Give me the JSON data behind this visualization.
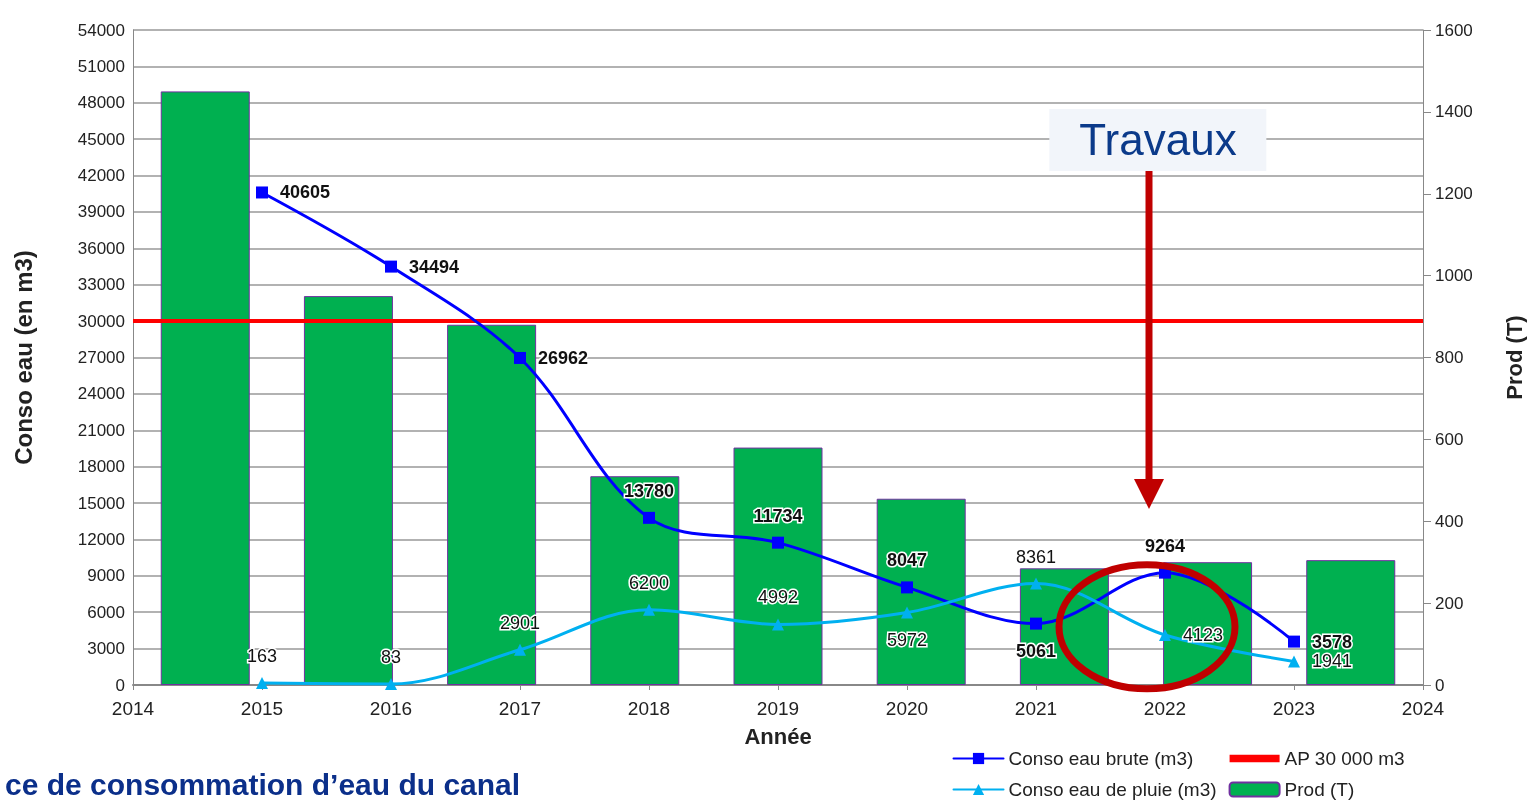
{
  "chart_data": {
    "type": "line",
    "title": "ce de consommation d’eau du canal",
    "xlabel": "Année",
    "ylabel": "Conso eau (en m3)",
    "y2label": "Prod (T)",
    "x": [
      2015,
      2016,
      2017,
      2018,
      2019,
      2020,
      2021,
      2022,
      2023
    ],
    "series": [
      {
        "name": "Conso eau brute (m3)",
        "color": "#0000ff",
        "marker": "square",
        "data_labels": true,
        "values": [
          40605,
          34494,
          26962,
          13780,
          11734,
          8047,
          5061,
          9264,
          3578
        ]
      },
      {
        "name": "Conso eau de pluie (m3)",
        "color": "#00b0f0",
        "marker": "triangle",
        "data_labels": true,
        "values": [
          163,
          83,
          2901,
          6200,
          4992,
          5972,
          8361,
          4123,
          1941
        ]
      },
      {
        "name": "Prod (T)",
        "type": "bar",
        "axis": "y2",
        "color": "#00b050",
        "x": [
          2014.56,
          2015.67,
          2016.78,
          2017.89,
          2019.0,
          2020.11,
          2021.22,
          2022.33,
          2023.44
        ],
        "values": [
          1450,
          950,
          880,
          510,
          580,
          455,
          285,
          300,
          305
        ]
      }
    ],
    "ref_lines": [
      {
        "axis": "y",
        "value": 30000,
        "label": "AP 30 000 m3",
        "color": "#ff0000"
      }
    ],
    "annotations": [
      "Travaux"
    ],
    "xlim": [
      2014,
      2024
    ],
    "xticks": [
      2014,
      2015,
      2016,
      2017,
      2018,
      2019,
      2020,
      2021,
      2022,
      2023,
      2024
    ],
    "ylim": [
      0,
      54000
    ],
    "yticks": [
      0,
      3000,
      6000,
      9000,
      12000,
      15000,
      18000,
      21000,
      24000,
      27000,
      30000,
      33000,
      36000,
      39000,
      42000,
      45000,
      48000,
      51000,
      54000
    ],
    "y2lim": [
      0,
      1600
    ],
    "y2ticks": [
      0,
      200,
      400,
      600,
      800,
      1000,
      1200,
      1400,
      1600
    ],
    "grid": "y",
    "legend": "bottom right",
    "line_style": "solid"
  }
}
